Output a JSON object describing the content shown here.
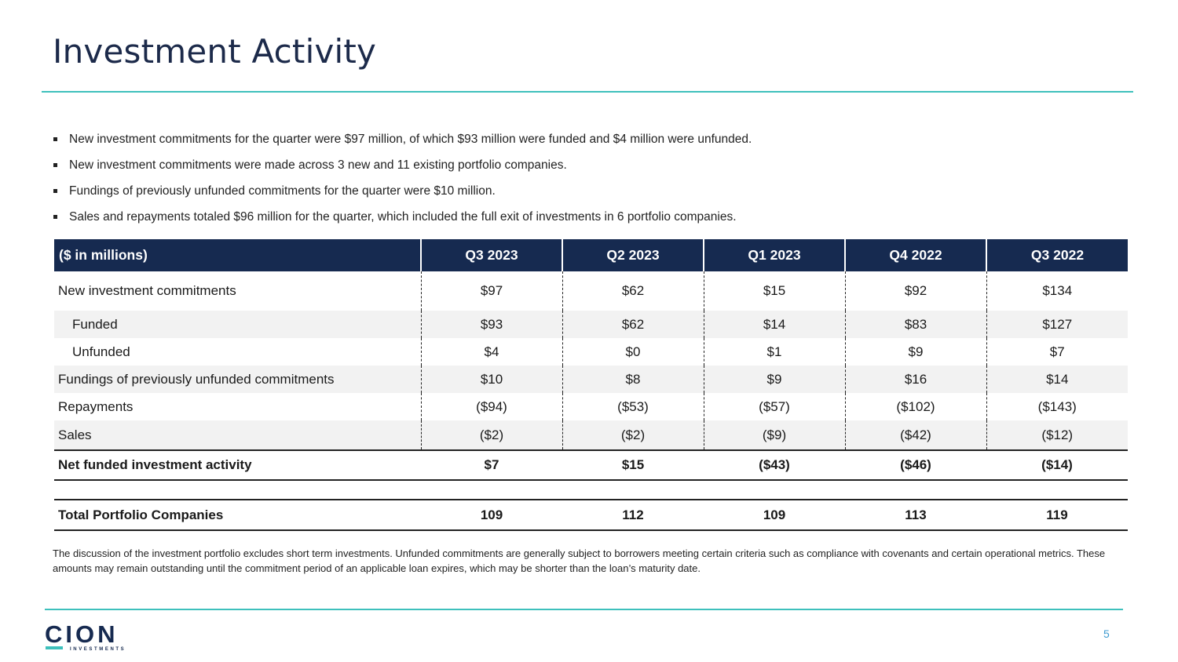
{
  "slide": {
    "title": "Investment Activity",
    "page_number": "5"
  },
  "bullets": [
    "New investment commitments for the quarter were $97 million, of which $93 million were funded and $4 million were unfunded.",
    "New investment commitments were made across 3 new and 11 existing portfolio companies.",
    "Fundings of previously unfunded commitments for the quarter were $10 million.",
    "Sales and repayments totaled $96 million for the quarter, which included the full exit of investments in 6 portfolio companies."
  ],
  "table": {
    "headers": [
      "($ in millions)",
      "Q3 2023",
      "Q2 2023",
      "Q1 2023",
      "Q4 2022",
      "Q3 2022"
    ],
    "rows": [
      {
        "label": "New investment commitments",
        "values": [
          "$97",
          "$62",
          "$15",
          "$92",
          "$134"
        ]
      },
      {
        "label": "Funded",
        "values": [
          "$93",
          "$62",
          "$14",
          "$83",
          "$127"
        ]
      },
      {
        "label": "Unfunded",
        "values": [
          "$4",
          "$0",
          "$1",
          "$9",
          "$7"
        ]
      },
      {
        "label": "Fundings of previously unfunded commitments",
        "values": [
          "$10",
          "$8",
          "$9",
          "$16",
          "$14"
        ]
      },
      {
        "label": "Repayments",
        "values": [
          "($94)",
          "($53)",
          "($57)",
          "($102)",
          "($143)"
        ]
      },
      {
        "label": "Sales",
        "values": [
          "($2)",
          "($2)",
          "($9)",
          "($42)",
          "($12)"
        ]
      }
    ],
    "net": {
      "label": "Net funded investment activity",
      "values": [
        "$7",
        "$15",
        "($43)",
        "($46)",
        "($14)"
      ]
    },
    "total": {
      "label": "Total Portfolio Companies",
      "values": [
        "109",
        "112",
        "109",
        "113",
        "119"
      ]
    }
  },
  "footnote": "The discussion of the investment portfolio excludes short term investments. Unfunded commitments are generally subject to borrowers meeting certain criteria such as compliance with covenants and certain operational metrics. These amounts may remain outstanding until the commitment period of an applicable loan expires, which may be shorter than the loan’s maturity date.",
  "logo": {
    "wordmark": "CION",
    "subtitle": "INVESTMENTS"
  },
  "colors": {
    "navy": "#162a50",
    "teal": "#3ec0bc",
    "page_number": "#3e9bd0"
  }
}
